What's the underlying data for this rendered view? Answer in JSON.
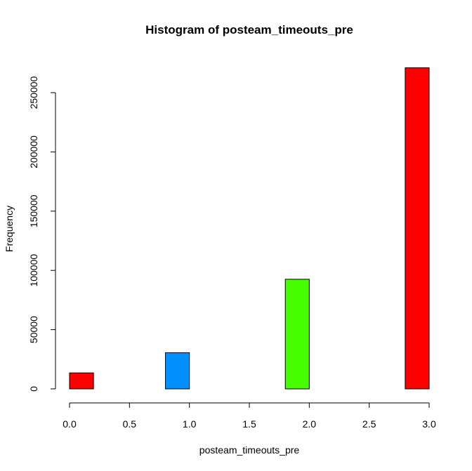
{
  "chart_data": {
    "type": "bar",
    "title": "Histogram of posteam_timeouts_pre",
    "xlabel": "posteam_timeouts_pre",
    "ylabel": "Frequency",
    "xlim": [
      0,
      3
    ],
    "ylim": [
      0,
      250000
    ],
    "x_ticks": [
      0.0,
      0.5,
      1.0,
      1.5,
      2.0,
      2.5,
      3.0
    ],
    "x_tick_labels": [
      "0.0",
      "0.5",
      "1.0",
      "1.5",
      "2.0",
      "2.5",
      "3.0"
    ],
    "y_ticks": [
      0,
      50000,
      100000,
      150000,
      200000,
      250000
    ],
    "y_tick_labels": [
      "0",
      "50000",
      "100000",
      "150000",
      "200000",
      "250000"
    ],
    "bins": [
      {
        "x0": 0.0,
        "x1": 0.2,
        "value": 13500,
        "color": "#FF0000"
      },
      {
        "x0": 0.8,
        "x1": 1.0,
        "value": 30500,
        "color": "#0091FF"
      },
      {
        "x0": 1.8,
        "x1": 2.0,
        "value": 92500,
        "color": "#48FF00"
      },
      {
        "x0": 2.8,
        "x1": 3.0,
        "value": 271000,
        "color": "#FF0000"
      }
    ],
    "grid": false,
    "legend": "none"
  }
}
